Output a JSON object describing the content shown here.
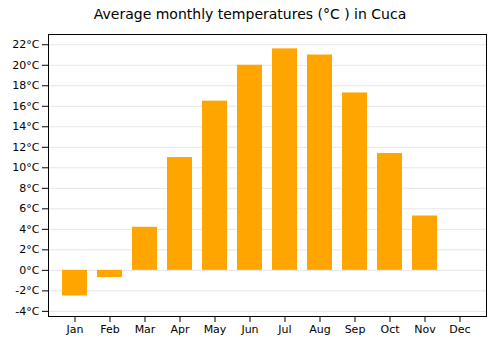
{
  "chart_data": {
    "type": "bar",
    "title": "Average monthly temperatures (°C ) in Cuca",
    "categories": [
      "Jan",
      "Feb",
      "Mar",
      "Apr",
      "May",
      "Jun",
      "Jul",
      "Aug",
      "Sep",
      "Oct",
      "Nov",
      "Dec"
    ],
    "values": [
      -2.5,
      -0.7,
      4.2,
      11.0,
      16.5,
      20.0,
      21.6,
      21.0,
      17.3,
      11.4,
      5.3,
      0.0
    ],
    "colors": [
      "#FFA500",
      "#FFA500",
      "#FFA500",
      "#FFA500",
      "#FFA500",
      "#FFA500",
      "#FFA500",
      "#FFA500",
      "#FFA500",
      "#FFA500",
      "#FFA500",
      "#A0A0A0"
    ],
    "ylim": [
      -4.5,
      23
    ],
    "yticks": [
      {
        "value": -4,
        "label": "-4°C"
      },
      {
        "value": -2,
        "label": "-2°C"
      },
      {
        "value": 0,
        "label": "0°C"
      },
      {
        "value": 2,
        "label": "2°C"
      },
      {
        "value": 4,
        "label": "4°C"
      },
      {
        "value": 6,
        "label": "6°C"
      },
      {
        "value": 8,
        "label": "8°C"
      },
      {
        "value": 10,
        "label": "10°C"
      },
      {
        "value": 12,
        "label": "12°C"
      },
      {
        "value": 14,
        "label": "14°C"
      },
      {
        "value": 16,
        "label": "16°C"
      },
      {
        "value": 18,
        "label": "18°C"
      },
      {
        "value": 20,
        "label": "20°C"
      },
      {
        "value": 22,
        "label": "22°C"
      }
    ],
    "grid": true
  }
}
